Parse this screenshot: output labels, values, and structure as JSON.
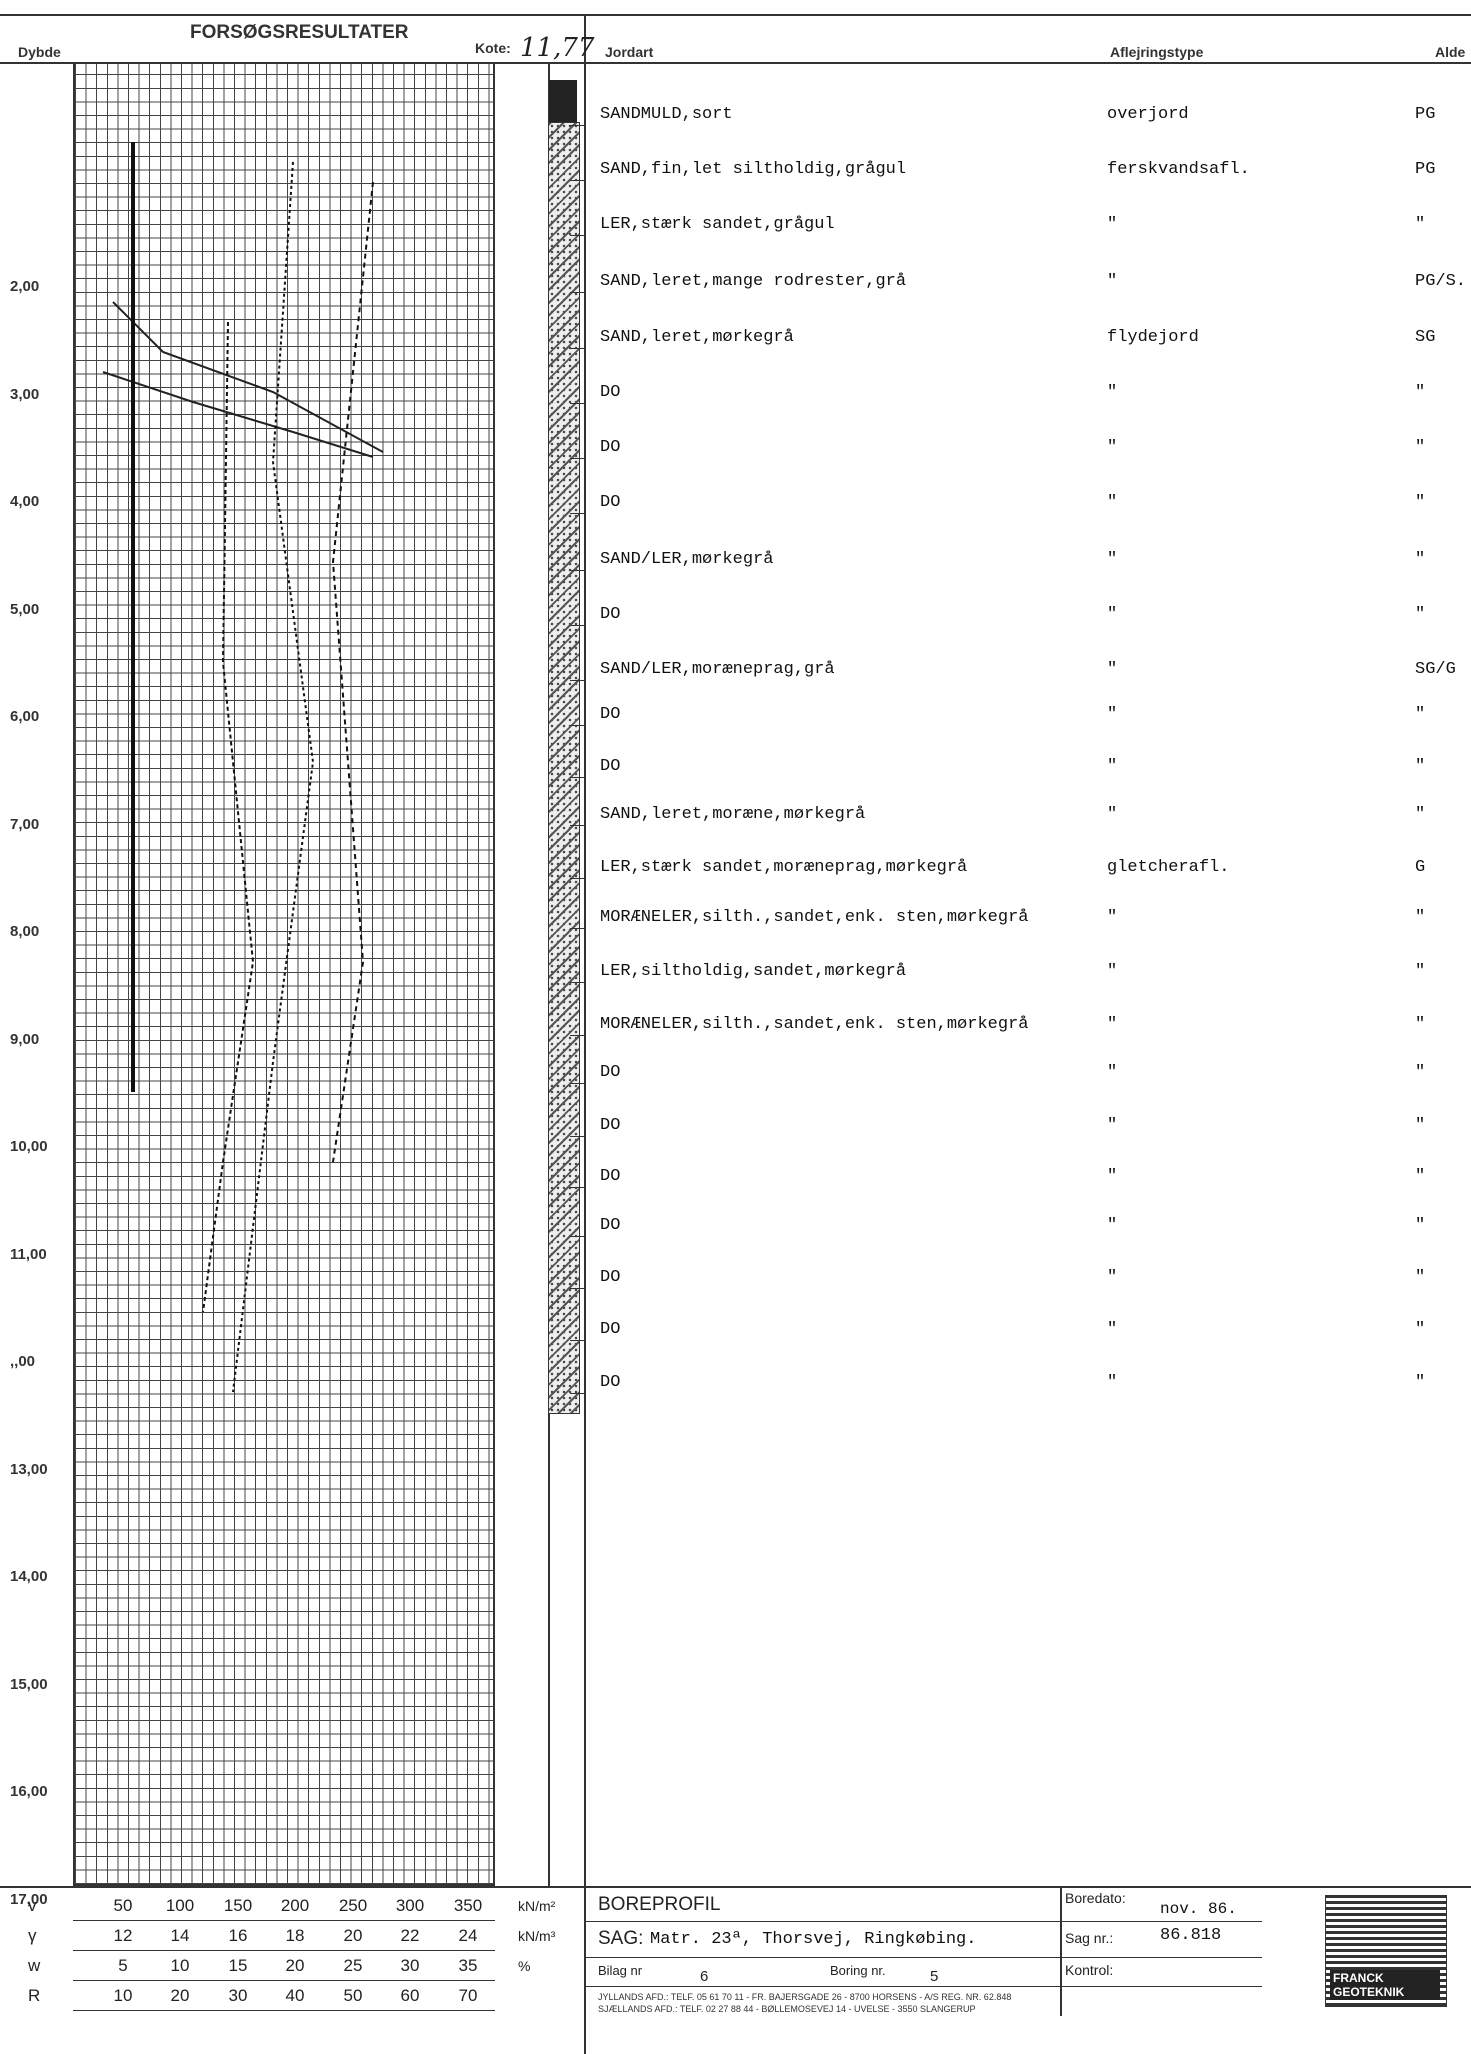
{
  "header": {
    "results_title": "FORSØGSRESULTATER",
    "depth_label": "Dybde",
    "kote_label": "Kote:",
    "kote_value": "11,77",
    "soil_label": "Jordart",
    "deposit_label": "Aflejringstype",
    "age_label": "Alde"
  },
  "depths": [
    "2,00",
    "3,00",
    "4,00",
    "5,00",
    "6,00",
    "7,00",
    "8,00",
    "9,00",
    "10,00",
    "11,00",
    ",,00",
    "13,00",
    "14,00",
    "15,00",
    "16,00",
    "17,00"
  ],
  "layers": [
    {
      "soil": "SANDMULD,sort",
      "deposit": "overjord",
      "age": "PG"
    },
    {
      "soil": "SAND,fin,let siltholdig,grågul",
      "deposit": "ferskvandsafl.",
      "age": "PG"
    },
    {
      "soil": "LER,stærk sandet,grågul",
      "deposit": "\"",
      "age": "\""
    },
    {
      "soil": "SAND,leret,mange rodrester,grå",
      "deposit": "\"",
      "age": "PG/S."
    },
    {
      "soil": "SAND,leret,mørkegrå",
      "deposit": "flydejord",
      "age": "SG"
    },
    {
      "soil": "DO",
      "deposit": "\"",
      "age": "\""
    },
    {
      "soil": "DO",
      "deposit": "\"",
      "age": "\""
    },
    {
      "soil": "DO",
      "deposit": "\"",
      "age": "\""
    },
    {
      "soil": "SAND/LER,mørkegrå",
      "deposit": "\"",
      "age": "\""
    },
    {
      "soil": "DO",
      "deposit": "\"",
      "age": "\""
    },
    {
      "soil": "SAND/LER,moræneprag,grå",
      "deposit": "\"",
      "age": "SG/G"
    },
    {
      "soil": "DO",
      "deposit": "\"",
      "age": "\""
    },
    {
      "soil": "DO",
      "deposit": "\"",
      "age": "\""
    },
    {
      "soil": "SAND,leret,moræne,mørkegrå",
      "deposit": "\"",
      "age": "\""
    },
    {
      "soil": "LER,stærk sandet,moræneprag,mørkegrå",
      "deposit": "gletcherafl.",
      "age": "G"
    },
    {
      "soil": "MORÆNELER,silth.,sandet,enk. sten,mørkegrå",
      "deposit": "\"",
      "age": "\""
    },
    {
      "soil": "LER,siltholdig,sandet,mørkegrå",
      "deposit": "\"",
      "age": "\""
    },
    {
      "soil": "MORÆNELER,silth.,sandet,enk. sten,mørkegrå",
      "deposit": "\"",
      "age": "\""
    },
    {
      "soil": "DO",
      "deposit": "\"",
      "age": "\""
    },
    {
      "soil": "DO",
      "deposit": "\"",
      "age": "\""
    },
    {
      "soil": "DO",
      "deposit": "\"",
      "age": "\""
    },
    {
      "soil": "DO",
      "deposit": "\"",
      "age": "\""
    },
    {
      "soil": "DO",
      "deposit": "\"",
      "age": "\""
    },
    {
      "soil": "DO",
      "deposit": "\"",
      "age": "\""
    },
    {
      "soil": "DO",
      "deposit": "\"",
      "age": "\""
    }
  ],
  "scales": [
    {
      "sym": "v",
      "unit": "kN/m²",
      "values": [
        "50",
        "100",
        "150",
        "200",
        "250",
        "300",
        "350"
      ]
    },
    {
      "sym": "γ",
      "unit": "kN/m³",
      "values": [
        "12",
        "14",
        "16",
        "18",
        "20",
        "22",
        "24"
      ]
    },
    {
      "sym": "w",
      "unit": "%",
      "values": [
        "5",
        "10",
        "15",
        "20",
        "25",
        "30",
        "35"
      ]
    },
    {
      "sym": "R",
      "unit": "",
      "values": [
        "10",
        "20",
        "30",
        "40",
        "50",
        "60",
        "70"
      ]
    }
  ],
  "footer": {
    "title": "BOREPROFIL",
    "boredato_label": "Boredato:",
    "boredato_value": "nov. 86.",
    "sag_label": "SAG:",
    "sag_value": "Matr. 23ª, Thorsvej, Ringkøbing.",
    "sagnr_label": "Sag nr.:",
    "sagnr_value": "86.818",
    "bilag_label": "Bilag nr",
    "bilag_value": "6",
    "boring_label": "Boring nr.",
    "boring_value": "5",
    "kontrol_label": "Kontrol:",
    "address1": "JYLLANDS AFD.: TELF. 05 61 70 11 - FR. BAJERSGADE 26 - 8700 HORSENS - A/S REG. NR. 62.848",
    "address2": "SJÆLLANDS AFD.: TELF. 02 27 88 44 - BØLLEMOSEVEJ 14 - UVELSE - 3550 SLANGERUP",
    "logo_text": "FRANCK GEOTEKNIK"
  }
}
